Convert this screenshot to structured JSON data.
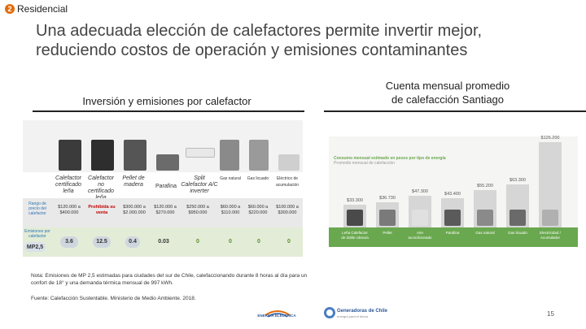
{
  "header": {
    "section_number": "2",
    "section_label": "Residencial",
    "title_line1": "Una adecuada elección de calefactores permite invertir mejor,",
    "title_line2": "reduciendo costos de operación y emisiones contaminantes"
  },
  "left_panel": {
    "title": "Inversión y emisiones por calefactor",
    "categories": [
      "Calefactor certificado leña",
      "Calefactor no certificado leña",
      "Pellet de madera",
      "Parafina",
      "Split Calefactor A/C inverter",
      "Gas natural",
      "Gas licuado",
      "Eléctrico de acumulación"
    ],
    "row_labels": {
      "investment": "Rango de precio del calefactor",
      "emissions": "Emisiones por calefactor"
    },
    "investment": [
      "$120.000 a $400.000",
      "Prohibida su venta",
      "$300.000 a $2.000.000",
      "$120.000 a $270.000",
      "$250.000 a $950.000",
      "$60.000 a $110.000",
      "$60.000 a $220.000",
      "$100.000 a $300.000"
    ],
    "mp_label": "MP2,5",
    "emissions": [
      "3.6",
      "12.5",
      "0.4",
      "0.03",
      "0",
      "0",
      "0",
      "0"
    ]
  },
  "right_panel": {
    "title_line1": "Cuenta mensual promedio",
    "title_line2": "de calefacción Santiago",
    "chart_caption": "Consumo mensual estimado en pesos por tipo de energía",
    "chart_caption_sub": "Promedio mensual de calefacción",
    "chart_data": {
      "type": "bar",
      "categories": [
        "Leña Calefactor de doble cámara",
        "Pellet",
        "Aire acondicionado",
        "Parafina",
        "Gas natural",
        "Gas licuado",
        "Electricidad / Acumulador"
      ],
      "values": [
        33300,
        36730,
        47300,
        43400,
        55200,
        63300,
        126200
      ],
      "value_labels": [
        "$33.300",
        "$36.730",
        "$47.300",
        "$43.400",
        "$55.200",
        "$63.300",
        "$126.200"
      ],
      "ylim": [
        0,
        130000
      ]
    }
  },
  "note": "Nota: Emisiones de MP 2,5 estimadas para ciudades del sur de Chile, calefaccionando durante 8 horas al día para un confort de 18° y una demanda térmica mensual de 997 kWh.",
  "source": "Fuente: Calefacción Sustentable. Ministerio de Medio Ambiente. 2018.",
  "logos": {
    "logo1": "ENERGÍA ELÉCTRICA",
    "logo2": "Generadoras de Chile",
    "logo2_sub": "energía para el futuro"
  },
  "page_number": "15",
  "colors": {
    "accent": "#e36c0a",
    "green": "#6aa84f",
    "red": "#c00000"
  }
}
